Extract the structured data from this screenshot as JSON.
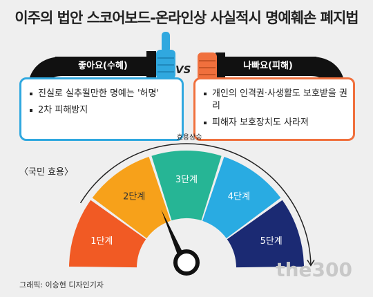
{
  "title": "이주의 법안 스코어보드-온라인상 사실적시 명예훼손 폐지법",
  "left": {
    "banner": "좋아요(수혜)",
    "bullets": [
      "진실로 실추될만한 명예는 '허명'",
      "2차 피해방지"
    ],
    "color": "#30a8df"
  },
  "right": {
    "banner": "나빠요(피해)",
    "bullets": [
      "개인의 인격권·사생활도 보호받을 권리",
      "피해자 보호장치도 사라져"
    ],
    "color": "#f0703d"
  },
  "vs": "VS",
  "section_label": "〈국민 효용〉",
  "gauge": {
    "arrow_label": "효용상승",
    "segments": [
      {
        "label": "1단계",
        "color": "#f15a24"
      },
      {
        "label": "2단계",
        "color": "#f7a11a"
      },
      {
        "label": "3단계",
        "color": "#26b595"
      },
      {
        "label": "4단계",
        "color": "#29abe2"
      },
      {
        "label": "5단계",
        "color": "#1b2a73"
      }
    ],
    "needle_level": "2단계"
  },
  "credit": "그래픽: 이승현 디자인기자",
  "watermark": "the300"
}
